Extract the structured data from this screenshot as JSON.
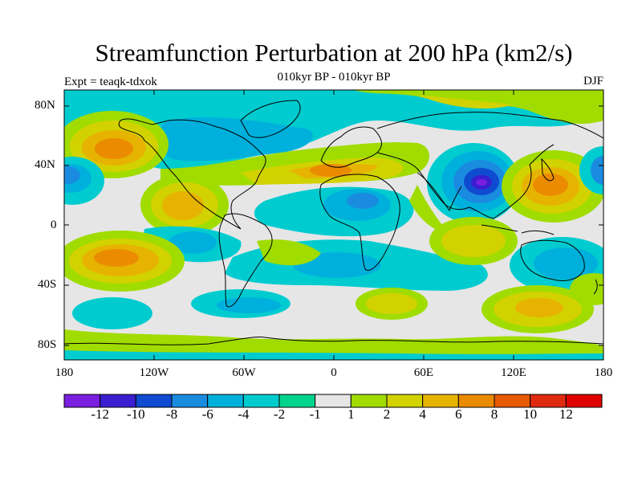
{
  "title": "Streamfunction Perturbation at 200 hPa (km2/s)",
  "subtitle": "010kyr BP - 010kyr BP",
  "experiment": "Expt = teaqk-tdxok",
  "season": "DJF",
  "lat_labels": [
    "80N",
    "40N",
    "0",
    "40S",
    "80S"
  ],
  "lon_labels": [
    "180",
    "120W",
    "60W",
    "0",
    "60E",
    "120E",
    "180"
  ],
  "colorbar": {
    "labels": [
      "-12",
      "-10",
      "-8",
      "-6",
      "-4",
      "-2",
      "-1",
      "1",
      "2",
      "4",
      "6",
      "8",
      "10",
      "12"
    ],
    "colors": [
      "#7a1ee0",
      "#3a1ed0",
      "#0f4bd0",
      "#1a8ce0",
      "#00b0dc",
      "#00ccd0",
      "#00d48c",
      "#e6e6e6",
      "#a0dc00",
      "#d2d200",
      "#e6b400",
      "#eb8c00",
      "#e65a00",
      "#e02a10",
      "#e00000"
    ]
  }
}
